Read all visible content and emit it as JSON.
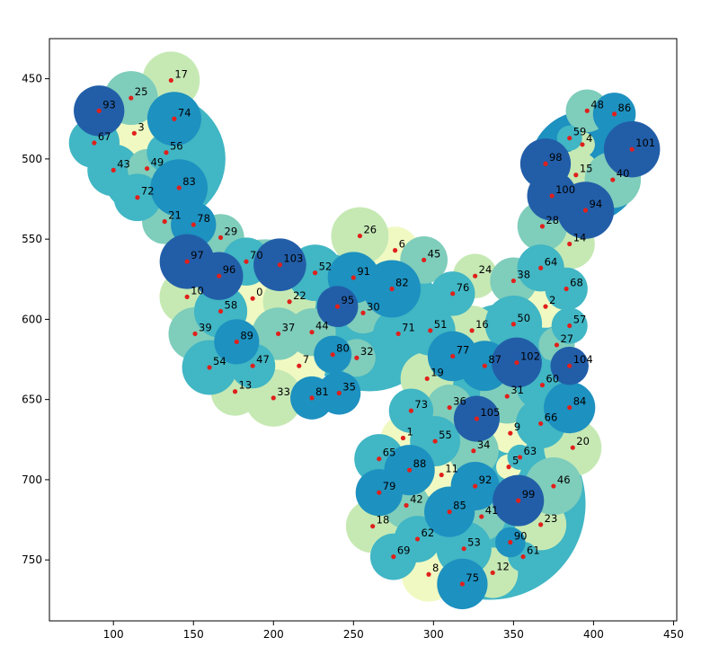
{
  "chart_data": {
    "type": "scatter",
    "title": "",
    "xlabel": "",
    "ylabel": "",
    "xlim": [
      60,
      452
    ],
    "ylim": [
      788,
      425
    ],
    "y_inverted": true,
    "grid": false,
    "legend": "none",
    "xticks": [
      100,
      150,
      200,
      250,
      300,
      350,
      400,
      450
    ],
    "yticks": [
      450,
      500,
      550,
      600,
      650,
      700,
      750
    ],
    "point_color": "#e0201b",
    "colormap": [
      "#f0f9c2",
      "#c6e9b4",
      "#7fcdbb",
      "#41b6c4",
      "#1d91c0",
      "#225ea8"
    ],
    "background_blobs": [
      {
        "cx": 130,
        "cy": 500,
        "r": 40,
        "color": "#41b6c4"
      },
      {
        "cx": 195,
        "cy": 595,
        "r": 45,
        "color": "#7fcdbb"
      },
      {
        "cx": 260,
        "cy": 600,
        "r": 45,
        "color": "#41b6c4"
      },
      {
        "cx": 395,
        "cy": 505,
        "r": 35,
        "color": "#1d91c0"
      },
      {
        "cx": 345,
        "cy": 630,
        "r": 40,
        "color": "#41b6c4"
      },
      {
        "cx": 335,
        "cy": 715,
        "r": 60,
        "color": "#41b6c4"
      }
    ],
    "points": [
      {
        "label": "0",
        "x": 187,
        "y": 587,
        "color": "#f0f9c2"
      },
      {
        "label": "1",
        "x": 281,
        "y": 674,
        "color": "#f0f9c2"
      },
      {
        "label": "2",
        "x": 370,
        "y": 592,
        "color": "#f0f9c2"
      },
      {
        "label": "3",
        "x": 113,
        "y": 484,
        "color": "#f0f9c2"
      },
      {
        "label": "4",
        "x": 393,
        "y": 491,
        "color": "#c6e9b4"
      },
      {
        "label": "5",
        "x": 347,
        "y": 692,
        "color": "#f0f9c2"
      },
      {
        "label": "6",
        "x": 276,
        "y": 557,
        "color": "#f0f9c2"
      },
      {
        "label": "7",
        "x": 216,
        "y": 629,
        "color": "#f0f9c2"
      },
      {
        "label": "8",
        "x": 297,
        "y": 759,
        "color": "#f0f9c2"
      },
      {
        "label": "9",
        "x": 348,
        "y": 671,
        "color": "#f0f9c2"
      },
      {
        "label": "10",
        "x": 146,
        "y": 586,
        "color": "#c6e9b4"
      },
      {
        "label": "11",
        "x": 305,
        "y": 697,
        "color": "#f0f9c2"
      },
      {
        "label": "12",
        "x": 337,
        "y": 758,
        "color": "#c6e9b4"
      },
      {
        "label": "13",
        "x": 176,
        "y": 645,
        "color": "#c6e9b4"
      },
      {
        "label": "14",
        "x": 385,
        "y": 553,
        "color": "#c6e9b4"
      },
      {
        "label": "15",
        "x": 389,
        "y": 510,
        "color": "#c6e9b4"
      },
      {
        "label": "16",
        "x": 324,
        "y": 607,
        "color": "#c6e9b4"
      },
      {
        "label": "17",
        "x": 136,
        "y": 451,
        "color": "#c6e9b4"
      },
      {
        "label": "18",
        "x": 262,
        "y": 729,
        "color": "#c6e9b4"
      },
      {
        "label": "19",
        "x": 296,
        "y": 637,
        "color": "#c6e9b4"
      },
      {
        "label": "20",
        "x": 387,
        "y": 680,
        "color": "#c6e9b4"
      },
      {
        "label": "21",
        "x": 132,
        "y": 539,
        "color": "#7fcdbb"
      },
      {
        "label": "22",
        "x": 210,
        "y": 589,
        "color": "#c6e9b4"
      },
      {
        "label": "23",
        "x": 367,
        "y": 728,
        "color": "#c6e9b4"
      },
      {
        "label": "24",
        "x": 326,
        "y": 573,
        "color": "#c6e9b4"
      },
      {
        "label": "25",
        "x": 111,
        "y": 462,
        "color": "#7fcdbb"
      },
      {
        "label": "26",
        "x": 254,
        "y": 548,
        "color": "#c6e9b4"
      },
      {
        "label": "27",
        "x": 377,
        "y": 616,
        "color": "#7fcdbb"
      },
      {
        "label": "28",
        "x": 368,
        "y": 542,
        "color": "#7fcdbb"
      },
      {
        "label": "29",
        "x": 167,
        "y": 549,
        "color": "#7fcdbb"
      },
      {
        "label": "30",
        "x": 256,
        "y": 596,
        "color": "#7fcdbb"
      },
      {
        "label": "31",
        "x": 346,
        "y": 648,
        "color": "#7fcdbb"
      },
      {
        "label": "32",
        "x": 252,
        "y": 624,
        "color": "#7fcdbb"
      },
      {
        "label": "33",
        "x": 200,
        "y": 649,
        "color": "#c6e9b4"
      },
      {
        "label": "34",
        "x": 325,
        "y": 682,
        "color": "#7fcdbb"
      },
      {
        "label": "35",
        "x": 241,
        "y": 646,
        "color": "#1d91c0"
      },
      {
        "label": "36",
        "x": 310,
        "y": 655,
        "color": "#7fcdbb"
      },
      {
        "label": "37",
        "x": 203,
        "y": 609,
        "color": "#7fcdbb"
      },
      {
        "label": "38",
        "x": 350,
        "y": 576,
        "color": "#7fcdbb"
      },
      {
        "label": "39",
        "x": 151,
        "y": 609,
        "color": "#7fcdbb"
      },
      {
        "label": "40",
        "x": 412,
        "y": 513,
        "color": "#7fcdbb"
      },
      {
        "label": "41",
        "x": 330,
        "y": 723,
        "color": "#7fcdbb"
      },
      {
        "label": "42",
        "x": 283,
        "y": 716,
        "color": "#7fcdbb"
      },
      {
        "label": "43",
        "x": 100,
        "y": 507,
        "color": "#41b6c4"
      },
      {
        "label": "44",
        "x": 224,
        "y": 608,
        "color": "#7fcdbb"
      },
      {
        "label": "45",
        "x": 294,
        "y": 563,
        "color": "#7fcdbb"
      },
      {
        "label": "46",
        "x": 375,
        "y": 704,
        "color": "#7fcdbb"
      },
      {
        "label": "47",
        "x": 187,
        "y": 629,
        "color": "#41b6c4"
      },
      {
        "label": "48",
        "x": 396,
        "y": 470,
        "color": "#7fcdbb"
      },
      {
        "label": "49",
        "x": 121,
        "y": 506,
        "color": "#7fcdbb"
      },
      {
        "label": "50",
        "x": 350,
        "y": 603,
        "color": "#41b6c4"
      },
      {
        "label": "51",
        "x": 298,
        "y": 607,
        "color": "#41b6c4"
      },
      {
        "label": "52",
        "x": 226,
        "y": 571,
        "color": "#41b6c4"
      },
      {
        "label": "53",
        "x": 319,
        "y": 743,
        "color": "#41b6c4"
      },
      {
        "label": "54",
        "x": 160,
        "y": 630,
        "color": "#41b6c4"
      },
      {
        "label": "55",
        "x": 301,
        "y": 676,
        "color": "#41b6c4"
      },
      {
        "label": "56",
        "x": 133,
        "y": 496,
        "color": "#41b6c4"
      },
      {
        "label": "57",
        "x": 385,
        "y": 604,
        "color": "#41b6c4"
      },
      {
        "label": "58",
        "x": 167,
        "y": 595,
        "color": "#41b6c4"
      },
      {
        "label": "59",
        "x": 385,
        "y": 487,
        "color": "#41b6c4"
      },
      {
        "label": "60",
        "x": 368,
        "y": 641,
        "color": "#41b6c4"
      },
      {
        "label": "61",
        "x": 356,
        "y": 748,
        "color": "#41b6c4"
      },
      {
        "label": "62",
        "x": 290,
        "y": 737,
        "color": "#41b6c4"
      },
      {
        "label": "63",
        "x": 354,
        "y": 686,
        "color": "#41b6c4"
      },
      {
        "label": "64",
        "x": 367,
        "y": 568,
        "color": "#41b6c4"
      },
      {
        "label": "65",
        "x": 266,
        "y": 687,
        "color": "#41b6c4"
      },
      {
        "label": "66",
        "x": 367,
        "y": 665,
        "color": "#41b6c4"
      },
      {
        "label": "67",
        "x": 88,
        "y": 490,
        "color": "#41b6c4"
      },
      {
        "label": "68",
        "x": 383,
        "y": 581,
        "color": "#41b6c4"
      },
      {
        "label": "69",
        "x": 275,
        "y": 748,
        "color": "#41b6c4"
      },
      {
        "label": "70",
        "x": 183,
        "y": 564,
        "color": "#41b6c4"
      },
      {
        "label": "71",
        "x": 278,
        "y": 609,
        "color": "#41b6c4"
      },
      {
        "label": "72",
        "x": 115,
        "y": 524,
        "color": "#41b6c4"
      },
      {
        "label": "73",
        "x": 286,
        "y": 657,
        "color": "#41b6c4"
      },
      {
        "label": "74",
        "x": 138,
        "y": 475,
        "color": "#1d91c0"
      },
      {
        "label": "75",
        "x": 318,
        "y": 765,
        "color": "#1d91c0"
      },
      {
        "label": "76",
        "x": 312,
        "y": 584,
        "color": "#41b6c4"
      },
      {
        "label": "77",
        "x": 312,
        "y": 623,
        "color": "#1d91c0"
      },
      {
        "label": "78",
        "x": 150,
        "y": 541,
        "color": "#1d91c0"
      },
      {
        "label": "79",
        "x": 266,
        "y": 708,
        "color": "#1d91c0"
      },
      {
        "label": "80",
        "x": 237,
        "y": 622,
        "color": "#1d91c0"
      },
      {
        "label": "81",
        "x": 224,
        "y": 649,
        "color": "#1d91c0"
      },
      {
        "label": "82",
        "x": 274,
        "y": 581,
        "color": "#1d91c0"
      },
      {
        "label": "83",
        "x": 141,
        "y": 518,
        "color": "#1d91c0"
      },
      {
        "label": "84",
        "x": 385,
        "y": 655,
        "color": "#1d91c0"
      },
      {
        "label": "85",
        "x": 310,
        "y": 720,
        "color": "#1d91c0"
      },
      {
        "label": "86",
        "x": 413,
        "y": 472,
        "color": "#1d91c0"
      },
      {
        "label": "87",
        "x": 332,
        "y": 629,
        "color": "#1d91c0"
      },
      {
        "label": "88",
        "x": 285,
        "y": 694,
        "color": "#1d91c0"
      },
      {
        "label": "89",
        "x": 177,
        "y": 614,
        "color": "#1d91c0"
      },
      {
        "label": "90",
        "x": 348,
        "y": 739,
        "color": "#1d91c0"
      },
      {
        "label": "91",
        "x": 250,
        "y": 574,
        "color": "#1d91c0"
      },
      {
        "label": "92",
        "x": 326,
        "y": 704,
        "color": "#1d91c0"
      },
      {
        "label": "93",
        "x": 91,
        "y": 470,
        "color": "#225ea8"
      },
      {
        "label": "94",
        "x": 395,
        "y": 532,
        "color": "#225ea8"
      },
      {
        "label": "95",
        "x": 240,
        "y": 592,
        "color": "#225ea8"
      },
      {
        "label": "96",
        "x": 166,
        "y": 573,
        "color": "#225ea8"
      },
      {
        "label": "97",
        "x": 146,
        "y": 564,
        "color": "#225ea8"
      },
      {
        "label": "98",
        "x": 370,
        "y": 503,
        "color": "#225ea8"
      },
      {
        "label": "99",
        "x": 353,
        "y": 713,
        "color": "#225ea8"
      },
      {
        "label": "100",
        "x": 374,
        "y": 523,
        "color": "#225ea8"
      },
      {
        "label": "101",
        "x": 424,
        "y": 494,
        "color": "#225ea8"
      },
      {
        "label": "102",
        "x": 352,
        "y": 627,
        "color": "#225ea8"
      },
      {
        "label": "103",
        "x": 204,
        "y": 566,
        "color": "#225ea8"
      },
      {
        "label": "104",
        "x": 385,
        "y": 629,
        "color": "#225ea8"
      },
      {
        "label": "105",
        "x": 327,
        "y": 662,
        "color": "#225ea8"
      }
    ]
  }
}
